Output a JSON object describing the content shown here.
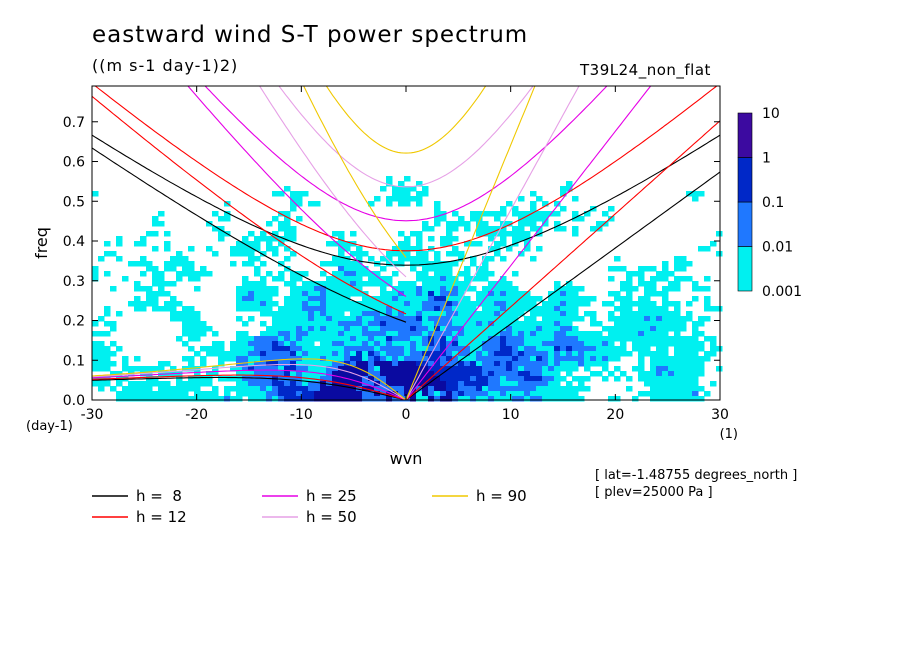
{
  "title": "eastward wind S-T power spectrum",
  "units": "((m s-1 day-1)2)",
  "experiment": "T39L24_non_flat",
  "meta": {
    "lat": "[ lat=-1.48755 degrees_north ]",
    "plev": "[ plev=25000 Pa ]"
  },
  "chart_data": {
    "type": "heatmap",
    "title": "eastward wind S-T power spectrum",
    "xlabel": "wvn",
    "ylabel": "freq",
    "x_unit_label": "(1)",
    "y_unit_label": "(day-1)",
    "xlim": [
      -30,
      30
    ],
    "ylim": [
      0,
      0.79
    ],
    "x_ticks": [
      -30,
      -20,
      -10,
      0,
      10,
      20,
      30
    ],
    "x_tick_labels": [
      "-30",
      "-20",
      "-10",
      "0",
      "10",
      "20",
      "30"
    ],
    "y_ticks": [
      0,
      0.1,
      0.2,
      0.3,
      0.4,
      0.5,
      0.6,
      0.7
    ],
    "y_tick_labels": [
      "0.0",
      "0.1",
      "0.2",
      "0.3",
      "0.4",
      "0.5",
      "0.6",
      "0.7"
    ],
    "colorbar": {
      "scale": "log",
      "levels": [
        "0.001",
        "0.01",
        "0.1",
        "1",
        "10"
      ],
      "colors": [
        "#00f0f0",
        "#1f78ff",
        "#0028c8",
        "#0a0aa0",
        "#3c0aa0"
      ]
    },
    "dispersion_curves": [
      {
        "label": "h =  8",
        "h": 8,
        "color": "#000000"
      },
      {
        "label": "h = 12",
        "h": 12,
        "color": "#ff0000"
      },
      {
        "label": "h = 25",
        "h": 25,
        "color": "#e600e6"
      },
      {
        "label": "h = 50",
        "h": 50,
        "color": "#e6a0e6"
      },
      {
        "label": "h = 90",
        "h": 90,
        "color": "#f0c800"
      }
    ],
    "legend_placement": "bottom-left",
    "grid": false
  }
}
